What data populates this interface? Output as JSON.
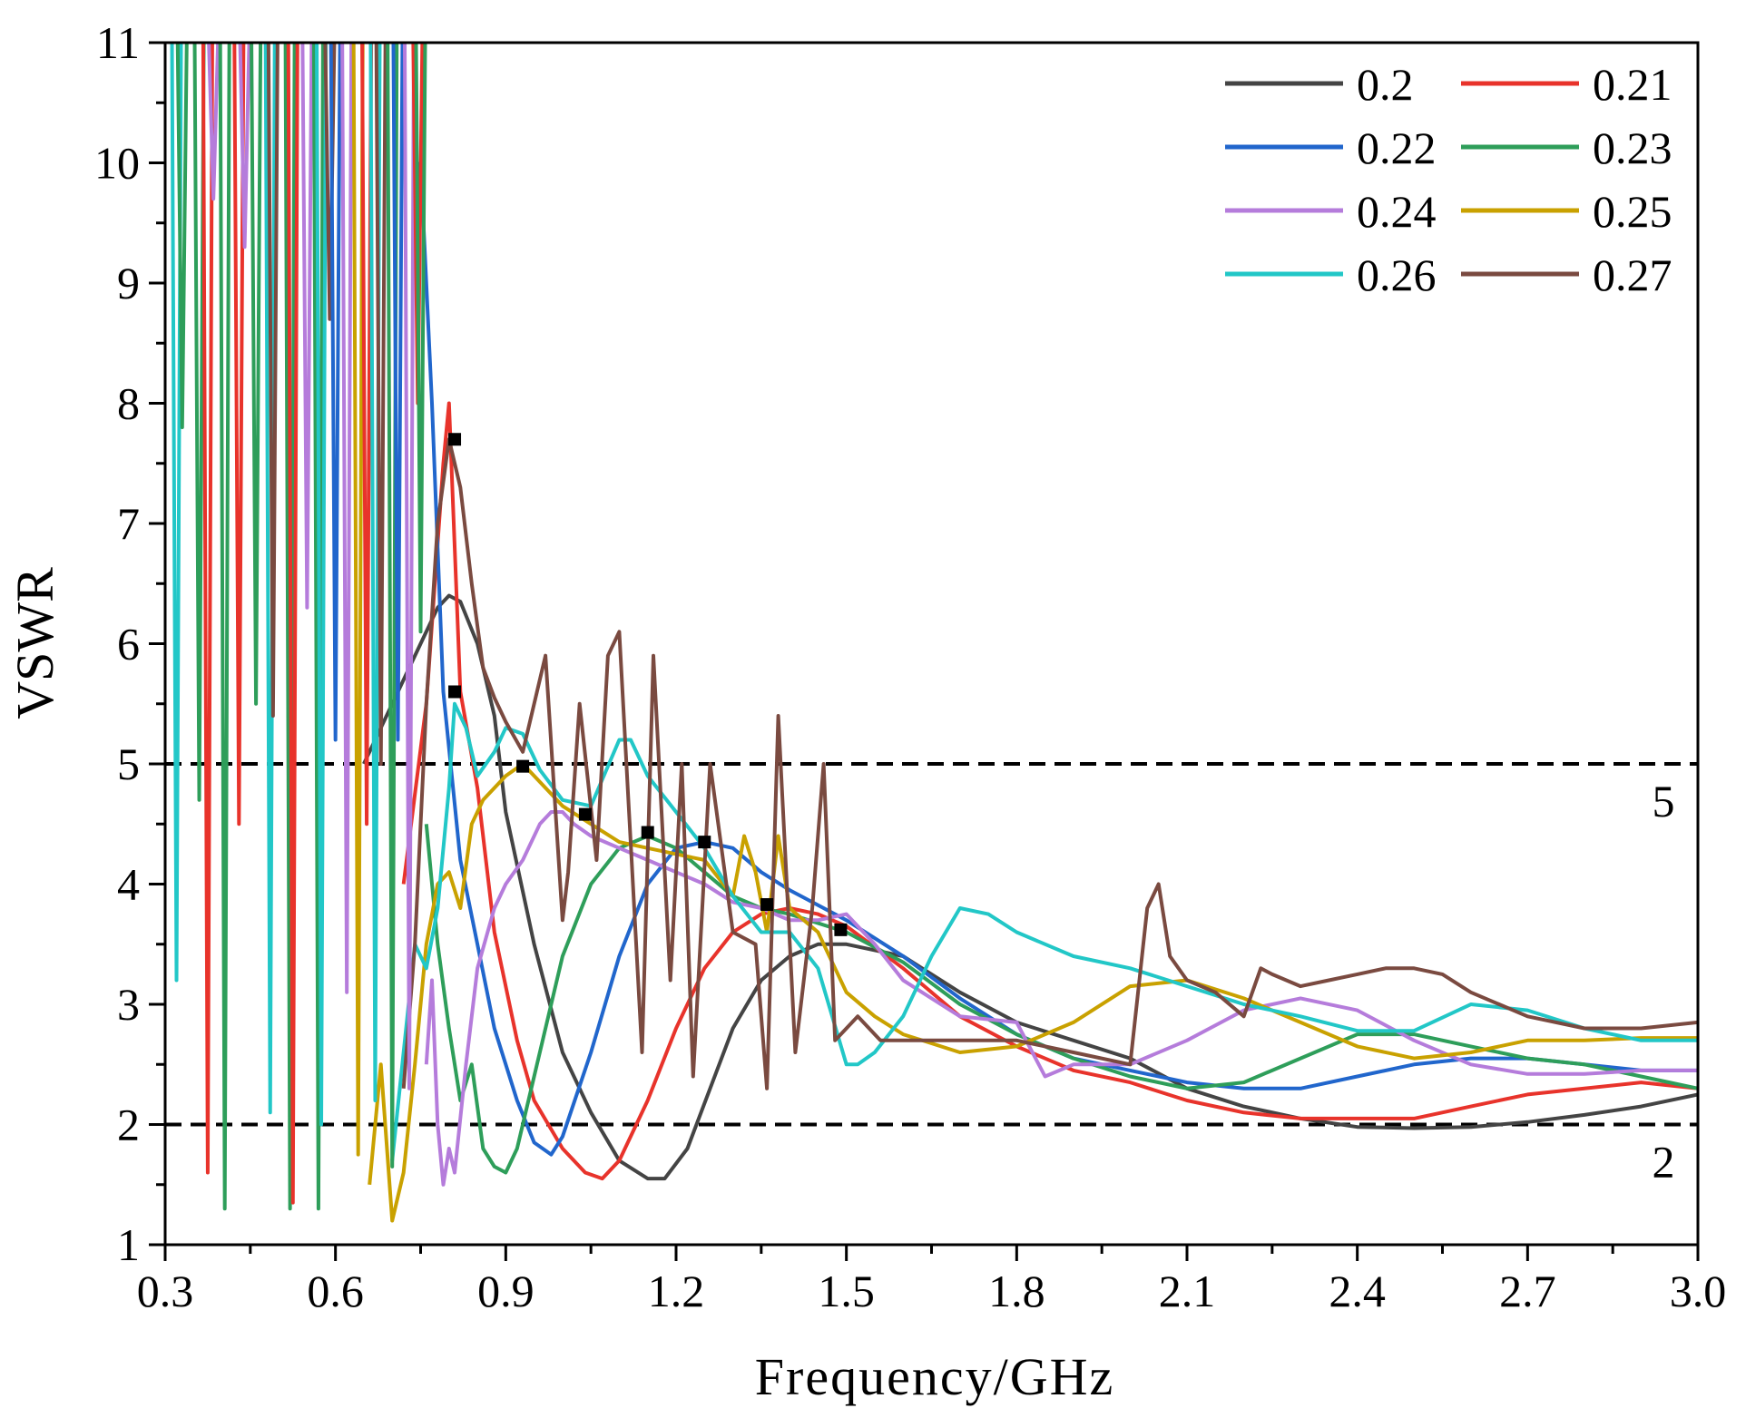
{
  "chart_data": {
    "type": "line",
    "title": "",
    "xlabel": "Frequency/GHz",
    "ylabel": "VSWR",
    "xlim": [
      0.3,
      3.0
    ],
    "ylim": [
      1,
      11
    ],
    "x_ticks": [
      "0.3",
      "0.6",
      "0.9",
      "1.2",
      "1.5",
      "1.8",
      "2.1",
      "2.4",
      "2.7",
      "3.0"
    ],
    "y_ticks": [
      "1",
      "2",
      "3",
      "4",
      "5",
      "6",
      "7",
      "8",
      "9",
      "10",
      "11"
    ],
    "grid": false,
    "legend_position": "top-right",
    "reference_lines": [
      {
        "y": 5,
        "label": "5"
      },
      {
        "y": 2,
        "label": "2"
      }
    ],
    "series": [
      {
        "name": "0.2",
        "color": "#444444",
        "x": [
          0.65,
          0.7,
          0.75,
          0.78,
          0.8,
          0.82,
          0.85,
          0.88,
          0.9,
          0.95,
          1.0,
          1.05,
          1.1,
          1.15,
          1.18,
          1.22,
          1.26,
          1.3,
          1.35,
          1.4,
          1.45,
          1.5,
          1.6,
          1.7,
          1.8,
          1.9,
          2.0,
          2.1,
          2.2,
          2.3,
          2.4,
          2.5,
          2.6,
          2.7,
          2.8,
          2.9,
          3.0
        ],
        "y": [
          5.0,
          5.5,
          6.0,
          6.3,
          6.4,
          6.35,
          6.0,
          5.4,
          4.6,
          3.5,
          2.6,
          2.1,
          1.7,
          1.55,
          1.55,
          1.8,
          2.3,
          2.8,
          3.2,
          3.4,
          3.5,
          3.5,
          3.4,
          3.1,
          2.85,
          2.7,
          2.55,
          2.3,
          2.15,
          2.05,
          1.98,
          1.97,
          1.98,
          2.02,
          2.08,
          2.15,
          2.25
        ]
      },
      {
        "name": "0.21",
        "color": "#e8332b",
        "x": [
          0.72,
          0.76,
          0.79,
          0.8,
          0.82,
          0.85,
          0.88,
          0.92,
          0.95,
          1.0,
          1.04,
          1.07,
          1.1,
          1.15,
          1.2,
          1.25,
          1.3,
          1.35,
          1.4,
          1.45,
          1.5,
          1.6,
          1.7,
          1.8,
          1.9,
          2.0,
          2.1,
          2.2,
          2.3,
          2.4,
          2.5,
          2.6,
          2.7,
          2.8,
          2.9,
          3.0
        ],
        "y": [
          4.0,
          5.5,
          7.5,
          8.0,
          5.6,
          4.8,
          3.6,
          2.7,
          2.2,
          1.8,
          1.6,
          1.55,
          1.7,
          2.2,
          2.8,
          3.3,
          3.6,
          3.75,
          3.8,
          3.75,
          3.65,
          3.3,
          2.9,
          2.65,
          2.45,
          2.35,
          2.2,
          2.1,
          2.05,
          2.05,
          2.05,
          2.15,
          2.25,
          2.3,
          2.35,
          2.3
        ]
      },
      {
        "name": "0.22",
        "color": "#2166cc",
        "x": [
          0.74,
          0.75,
          0.77,
          0.79,
          0.82,
          0.85,
          0.88,
          0.92,
          0.95,
          0.98,
          1.0,
          1.05,
          1.1,
          1.15,
          1.2,
          1.25,
          1.3,
          1.35,
          1.4,
          1.5,
          1.6,
          1.7,
          1.8,
          1.9,
          2.0,
          2.1,
          2.2,
          2.3,
          2.4,
          2.5,
          2.6,
          2.7,
          2.8,
          2.9,
          3.0
        ],
        "y": [
          9.5,
          10.0,
          8.0,
          5.6,
          4.2,
          3.5,
          2.8,
          2.2,
          1.85,
          1.75,
          1.9,
          2.6,
          3.4,
          4.0,
          4.3,
          4.35,
          4.3,
          4.1,
          3.95,
          3.7,
          3.4,
          3.05,
          2.75,
          2.55,
          2.45,
          2.35,
          2.3,
          2.3,
          2.4,
          2.5,
          2.55,
          2.55,
          2.5,
          2.45,
          2.45
        ]
      },
      {
        "name": "0.23",
        "color": "#2e9e5a",
        "x": [
          0.76,
          0.78,
          0.8,
          0.82,
          0.84,
          0.86,
          0.88,
          0.9,
          0.92,
          0.95,
          1.0,
          1.05,
          1.1,
          1.15,
          1.2,
          1.25,
          1.3,
          1.35,
          1.4,
          1.5,
          1.6,
          1.7,
          1.8,
          1.9,
          2.0,
          2.1,
          2.2,
          2.3,
          2.4,
          2.5,
          2.6,
          2.7,
          2.8,
          2.9,
          3.0
        ],
        "y": [
          4.5,
          3.5,
          2.8,
          2.2,
          2.5,
          1.8,
          1.65,
          1.6,
          1.8,
          2.4,
          3.4,
          4.0,
          4.3,
          4.4,
          4.3,
          4.1,
          3.9,
          3.8,
          3.75,
          3.6,
          3.35,
          3.0,
          2.75,
          2.55,
          2.4,
          2.3,
          2.35,
          2.55,
          2.75,
          2.75,
          2.65,
          2.55,
          2.5,
          2.4,
          2.3
        ]
      },
      {
        "name": "0.24",
        "color": "#b57cdb",
        "x": [
          0.76,
          0.77,
          0.78,
          0.79,
          0.8,
          0.81,
          0.83,
          0.85,
          0.88,
          0.9,
          0.93,
          0.96,
          0.98,
          1.0,
          1.02,
          1.05,
          1.1,
          1.15,
          1.2,
          1.25,
          1.3,
          1.35,
          1.4,
          1.45,
          1.5,
          1.55,
          1.6,
          1.7,
          1.8,
          1.85,
          1.9,
          2.0,
          2.1,
          2.2,
          2.3,
          2.4,
          2.5,
          2.6,
          2.7,
          2.8,
          2.9,
          3.0
        ],
        "y": [
          2.5,
          3.2,
          2.0,
          1.5,
          1.8,
          1.6,
          2.5,
          3.3,
          3.8,
          4.0,
          4.2,
          4.5,
          4.6,
          4.6,
          4.5,
          4.4,
          4.3,
          4.2,
          4.1,
          4.0,
          3.85,
          3.8,
          3.7,
          3.7,
          3.75,
          3.5,
          3.2,
          2.9,
          2.85,
          2.4,
          2.5,
          2.5,
          2.7,
          2.95,
          3.05,
          2.95,
          2.7,
          2.5,
          2.42,
          2.42,
          2.45,
          2.45
        ]
      },
      {
        "name": "0.25",
        "color": "#c9a100",
        "x": [
          0.66,
          0.68,
          0.7,
          0.72,
          0.74,
          0.76,
          0.78,
          0.8,
          0.82,
          0.84,
          0.86,
          0.9,
          0.93,
          0.96,
          1.0,
          1.05,
          1.1,
          1.15,
          1.2,
          1.25,
          1.3,
          1.32,
          1.34,
          1.36,
          1.38,
          1.4,
          1.45,
          1.5,
          1.55,
          1.6,
          1.7,
          1.8,
          1.9,
          2.0,
          2.1,
          2.2,
          2.3,
          2.4,
          2.5,
          2.6,
          2.7,
          2.8,
          2.9,
          3.0
        ],
        "y": [
          1.5,
          2.5,
          1.2,
          1.6,
          2.5,
          3.5,
          4.0,
          4.1,
          3.8,
          4.5,
          4.7,
          4.9,
          5.0,
          4.85,
          4.65,
          4.5,
          4.35,
          4.3,
          4.25,
          4.2,
          3.9,
          4.4,
          4.1,
          3.6,
          4.4,
          3.8,
          3.6,
          3.1,
          2.9,
          2.75,
          2.6,
          2.65,
          2.85,
          3.15,
          3.2,
          3.05,
          2.85,
          2.65,
          2.55,
          2.6,
          2.7,
          2.7,
          2.72,
          2.72
        ]
      },
      {
        "name": "0.26",
        "color": "#22c7c7",
        "x": [
          0.7,
          0.72,
          0.74,
          0.76,
          0.78,
          0.8,
          0.81,
          0.83,
          0.85,
          0.88,
          0.9,
          0.93,
          0.96,
          1.0,
          1.05,
          1.1,
          1.12,
          1.15,
          1.2,
          1.25,
          1.3,
          1.35,
          1.4,
          1.45,
          1.5,
          1.52,
          1.55,
          1.6,
          1.65,
          1.7,
          1.75,
          1.8,
          1.9,
          2.0,
          2.1,
          2.2,
          2.3,
          2.4,
          2.5,
          2.6,
          2.7,
          2.8,
          2.9,
          3.0
        ],
        "y": [
          1.7,
          2.6,
          3.5,
          3.3,
          3.8,
          4.8,
          5.5,
          5.3,
          4.9,
          5.1,
          5.3,
          5.25,
          4.95,
          4.7,
          4.65,
          5.2,
          5.2,
          4.9,
          4.6,
          4.3,
          3.9,
          3.6,
          3.6,
          3.3,
          2.5,
          2.5,
          2.6,
          2.9,
          3.4,
          3.8,
          3.75,
          3.6,
          3.4,
          3.3,
          3.15,
          3.0,
          2.9,
          2.78,
          2.78,
          3.0,
          2.95,
          2.8,
          2.7,
          2.7
        ]
      },
      {
        "name": "0.27",
        "color": "#7a4a40",
        "x": [
          0.72,
          0.74,
          0.76,
          0.78,
          0.8,
          0.82,
          0.84,
          0.86,
          0.88,
          0.9,
          0.93,
          0.95,
          0.97,
          1.0,
          1.01,
          1.03,
          1.06,
          1.08,
          1.1,
          1.14,
          1.16,
          1.19,
          1.21,
          1.23,
          1.26,
          1.3,
          1.34,
          1.36,
          1.38,
          1.41,
          1.44,
          1.46,
          1.48,
          1.52,
          1.56,
          1.6,
          1.62,
          1.65,
          1.7,
          1.8,
          1.9,
          2.0,
          2.03,
          2.05,
          2.07,
          2.1,
          2.15,
          2.2,
          2.23,
          2.25,
          2.3,
          2.35,
          2.4,
          2.45,
          2.5,
          2.55,
          2.6,
          2.7,
          2.8,
          2.9,
          3.0
        ],
        "y": [
          2.3,
          3.5,
          5.5,
          7.0,
          7.7,
          7.3,
          6.5,
          5.8,
          5.55,
          5.35,
          5.1,
          5.5,
          5.9,
          3.7,
          4.1,
          5.5,
          4.2,
          5.9,
          6.1,
          2.6,
          5.9,
          3.2,
          5.0,
          2.4,
          5.0,
          3.6,
          3.5,
          2.3,
          5.4,
          2.6,
          3.8,
          5.0,
          2.7,
          2.9,
          2.7,
          2.7,
          2.7,
          2.7,
          2.7,
          2.7,
          2.6,
          2.5,
          3.8,
          4.0,
          3.4,
          3.2,
          3.1,
          2.9,
          3.3,
          3.25,
          3.15,
          3.2,
          3.25,
          3.3,
          3.3,
          3.25,
          3.1,
          2.9,
          2.8,
          2.8,
          2.85
        ]
      }
    ],
    "markers": [
      {
        "x": 0.81,
        "y": 7.7
      },
      {
        "x": 0.81,
        "y": 5.6
      },
      {
        "x": 0.93,
        "y": 4.98
      },
      {
        "x": 1.04,
        "y": 4.58
      },
      {
        "x": 1.15,
        "y": 4.43
      },
      {
        "x": 1.25,
        "y": 4.35
      },
      {
        "x": 1.36,
        "y": 3.83
      },
      {
        "x": 1.49,
        "y": 3.62
      }
    ]
  }
}
